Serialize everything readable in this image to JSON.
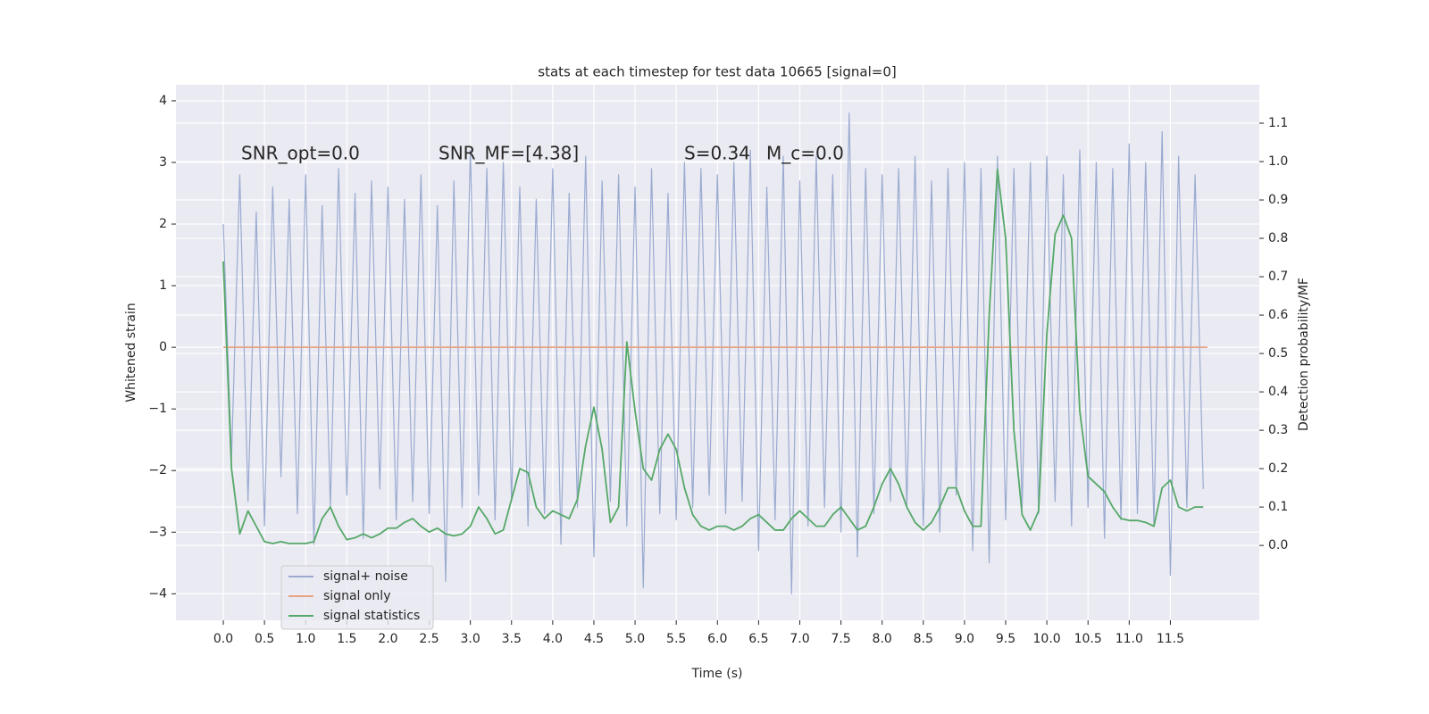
{
  "chart_data": {
    "type": "line",
    "title": "stats at each timestep for test data 10665 [signal=0]",
    "xlabel": "Time (s)",
    "ylabel": "Whitened strain",
    "y2label": "Detection probability/MF",
    "annotations": [
      "SNR_opt=0.0",
      "SNR_MF=[4.38]",
      "S=0.34",
      "M_c=0.0"
    ],
    "xlim": [
      -0.575,
      12.58
    ],
    "ylim": [
      -4.43,
      4.26
    ],
    "y2lim": [
      -0.195,
      1.2
    ],
    "xticks": [
      {
        "value": 0,
        "label": "0.0"
      },
      {
        "value": 0.5,
        "label": "0.5"
      },
      {
        "value": 1,
        "label": "1.0"
      },
      {
        "value": 1.5,
        "label": "1.5"
      },
      {
        "value": 2,
        "label": "2.0"
      },
      {
        "value": 2.5,
        "label": "2.5"
      },
      {
        "value": 3,
        "label": "3.0"
      },
      {
        "value": 3.5,
        "label": "3.5"
      },
      {
        "value": 4,
        "label": "4.0"
      },
      {
        "value": 4.5,
        "label": "4.5"
      },
      {
        "value": 5,
        "label": "5.0"
      },
      {
        "value": 5.5,
        "label": "5.5"
      },
      {
        "value": 6,
        "label": "6.0"
      },
      {
        "value": 6.5,
        "label": "6.5"
      },
      {
        "value": 7,
        "label": "7.0"
      },
      {
        "value": 7.5,
        "label": "7.5"
      },
      {
        "value": 8,
        "label": "8.0"
      },
      {
        "value": 8.5,
        "label": "8.5"
      },
      {
        "value": 9,
        "label": "9.0"
      },
      {
        "value": 9.5,
        "label": "9.5"
      },
      {
        "value": 10,
        "label": "10.0"
      },
      {
        "value": 10.5,
        "label": "10.5"
      },
      {
        "value": 11,
        "label": "11.0"
      },
      {
        "value": 11.5,
        "label": "11.5"
      }
    ],
    "yticks": [
      {
        "value": -4,
        "label": "−4"
      },
      {
        "value": -3,
        "label": "−3"
      },
      {
        "value": -2,
        "label": "−2"
      },
      {
        "value": -1,
        "label": "−1"
      },
      0,
      1,
      2,
      3,
      4
    ],
    "y2ticks": [
      {
        "value": 0,
        "label": "0.0"
      },
      {
        "value": 0.1,
        "label": "0.1"
      },
      {
        "value": 0.2,
        "label": "0.2"
      },
      {
        "value": 0.3,
        "label": "0.3"
      },
      {
        "value": 0.4,
        "label": "0.4"
      },
      {
        "value": 0.5,
        "label": "0.5"
      },
      {
        "value": 0.6,
        "label": "0.6"
      },
      {
        "value": 0.7,
        "label": "0.7"
      },
      {
        "value": 0.8,
        "label": "0.8"
      },
      {
        "value": 0.9,
        "label": "0.9"
      },
      {
        "value": 1.0,
        "label": "1.0"
      },
      {
        "value": 1.1,
        "label": "1.1"
      }
    ],
    "grid": true,
    "legend": "lower left",
    "x": [
      0,
      0.1,
      0.2,
      0.3,
      0.4,
      0.5,
      0.6,
      0.7,
      0.8,
      0.9,
      1,
      1.1,
      1.2,
      1.3,
      1.4,
      1.5,
      1.6,
      1.7,
      1.8,
      1.9,
      2,
      2.1,
      2.2,
      2.3,
      2.4,
      2.5,
      2.6,
      2.7,
      2.8,
      2.9,
      3,
      3.1,
      3.2,
      3.3,
      3.4,
      3.5,
      3.6,
      3.7,
      3.8,
      3.9,
      4,
      4.1,
      4.2,
      4.3,
      4.4,
      4.5,
      4.6,
      4.7,
      4.8,
      4.9,
      5,
      5.1,
      5.2,
      5.3,
      5.4,
      5.5,
      5.6,
      5.7,
      5.8,
      5.9,
      6,
      6.1,
      6.2,
      6.3,
      6.4,
      6.5,
      6.6,
      6.7,
      6.8,
      6.9,
      7,
      7.1,
      7.2,
      7.3,
      7.4,
      7.5,
      7.6,
      7.7,
      7.8,
      7.9,
      8,
      8.1,
      8.2,
      8.3,
      8.4,
      8.5,
      8.6,
      8.7,
      8.8,
      8.9,
      9,
      9.1,
      9.2,
      9.3,
      9.4,
      9.5,
      9.6,
      9.7,
      9.8,
      9.9,
      10,
      10.1,
      10.2,
      10.3,
      10.4,
      10.5,
      10.6,
      10.7,
      10.8,
      10.9,
      11,
      11.1,
      11.2,
      11.3,
      11.4,
      11.5,
      11.6,
      11.7,
      11.8,
      11.9
    ],
    "series": [
      {
        "name": "signal+ noise",
        "color": "#9aabd0",
        "values": [
          2.0,
          -1.8,
          2.8,
          -2.5,
          2.2,
          -2.9,
          2.6,
          -2.1,
          2.4,
          -2.7,
          2.8,
          -3.2,
          2.3,
          -2.6,
          2.9,
          -2.4,
          2.5,
          -3.1,
          2.7,
          -2.3,
          2.6,
          -2.8,
          2.4,
          -2.5,
          2.8,
          -2.7,
          2.3,
          -3.8,
          2.7,
          -2.6,
          3.2,
          -2.4,
          2.9,
          -2.8,
          3.0,
          -2.5,
          2.6,
          -2.9,
          2.4,
          -2.7,
          2.9,
          -3.2,
          2.5,
          -2.6,
          3.1,
          -3.4,
          2.7,
          -2.5,
          2.8,
          -2.9,
          2.6,
          -3.9,
          2.9,
          -2.7,
          2.5,
          -2.8,
          3.0,
          -2.6,
          2.9,
          -2.4,
          2.8,
          -2.7,
          3.0,
          -2.5,
          3.2,
          -3.3,
          2.6,
          -2.8,
          3.1,
          -4.0,
          2.7,
          -2.9,
          3.1,
          -2.6,
          2.8,
          -3.0,
          3.8,
          -3.4,
          2.9,
          -2.7,
          2.8,
          -2.5,
          2.9,
          -2.6,
          3.1,
          -2.9,
          2.7,
          -3.0,
          2.9,
          -2.4,
          3.0,
          -3.3,
          2.9,
          -3.5,
          3.1,
          -2.8,
          2.9,
          -2.6,
          3.0,
          -2.7,
          3.1,
          -2.5,
          2.8,
          -2.9,
          3.2,
          -2.6,
          3.0,
          -3.1,
          2.9,
          -2.8,
          3.3,
          -2.7,
          3.0,
          -2.9,
          3.5,
          -3.7,
          3.1,
          -2.6,
          2.8,
          -2.3
        ]
      },
      {
        "name": "signal only",
        "color": "#e8a383",
        "x": [
          0,
          11.95
        ],
        "values": [
          0,
          0
        ]
      },
      {
        "name": "signal statistics",
        "color": "#55a868",
        "axis": "y2",
        "values": [
          0.74,
          0.2,
          0.03,
          0.09,
          0.05,
          0.01,
          0.005,
          0.01,
          0.005,
          0.005,
          0.005,
          0.01,
          0.07,
          0.1,
          0.05,
          0.015,
          0.02,
          0.03,
          0.02,
          0.03,
          0.045,
          0.045,
          0.06,
          0.07,
          0.05,
          0.035,
          0.045,
          0.03,
          0.025,
          0.03,
          0.05,
          0.1,
          0.07,
          0.03,
          0.04,
          0.12,
          0.2,
          0.19,
          0.1,
          0.07,
          0.09,
          0.08,
          0.07,
          0.12,
          0.26,
          0.36,
          0.25,
          0.06,
          0.1,
          0.53,
          0.35,
          0.2,
          0.17,
          0.25,
          0.29,
          0.25,
          0.15,
          0.08,
          0.05,
          0.04,
          0.05,
          0.05,
          0.04,
          0.05,
          0.07,
          0.08,
          0.06,
          0.04,
          0.04,
          0.07,
          0.09,
          0.07,
          0.05,
          0.05,
          0.08,
          0.1,
          0.07,
          0.04,
          0.05,
          0.1,
          0.16,
          0.2,
          0.16,
          0.1,
          0.06,
          0.04,
          0.06,
          0.1,
          0.15,
          0.15,
          0.09,
          0.05,
          0.05,
          0.6,
          0.98,
          0.8,
          0.3,
          0.08,
          0.04,
          0.09,
          0.55,
          0.81,
          0.86,
          0.8,
          0.35,
          0.18,
          0.16,
          0.14,
          0.1,
          0.07,
          0.065,
          0.065,
          0.06,
          0.05,
          0.15,
          0.17,
          0.1,
          0.09,
          0.1,
          0.1
        ]
      }
    ]
  }
}
